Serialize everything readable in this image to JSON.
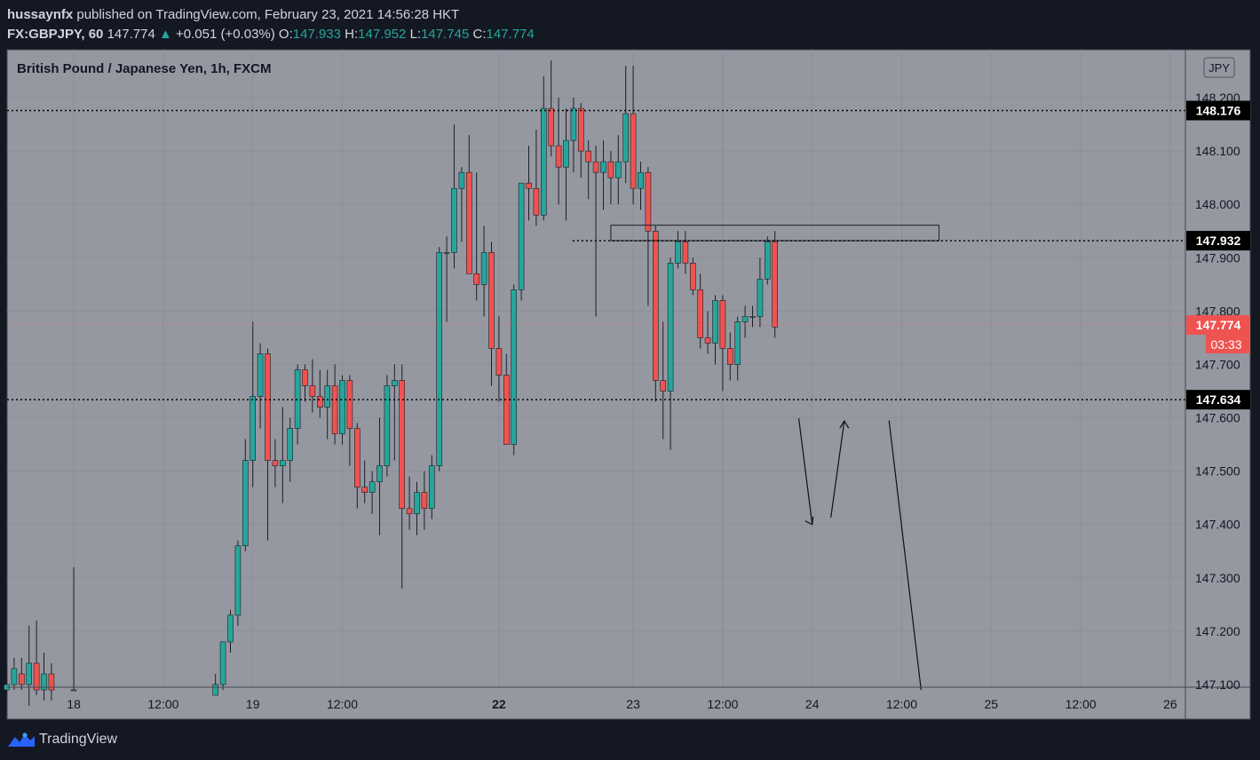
{
  "header": {
    "publisher": "hussaynfx",
    "published_text": "published on TradingView.com, February 23, 2021 14:56:28 HKT",
    "symbol_interval": "FX:GBPJPY, 60",
    "last_price": "147.774",
    "change": "+0.051 (+0.03%)",
    "o_label": "O:",
    "o_value": "147.933",
    "h_label": "H:",
    "h_value": "147.952",
    "l_label": "L:",
    "l_value": "147.745",
    "c_label": "C:",
    "c_value": "147.774"
  },
  "chart_data": {
    "type": "candlestick",
    "title": "British Pound / Japanese Yen, 1h, FXCM",
    "currency_badge": "JPY",
    "y_ticks": [
      "148.200",
      "148.100",
      "148.000",
      "147.900",
      "147.800",
      "147.700",
      "147.600",
      "147.500",
      "147.400",
      "147.300",
      "147.200",
      "147.100"
    ],
    "y_tick_values": [
      148.2,
      148.1,
      148.0,
      147.9,
      147.8,
      147.7,
      147.6,
      147.5,
      147.4,
      147.3,
      147.2,
      147.1
    ],
    "ylim": [
      147.095,
      148.29
    ],
    "x_ticks": [
      {
        "label": "18",
        "bar": 9,
        "bold": false
      },
      {
        "label": "12:00",
        "bar": 21,
        "bold": false
      },
      {
        "label": "19",
        "bar": 33,
        "bold": false
      },
      {
        "label": "12:00",
        "bar": 45,
        "bold": false
      },
      {
        "label": "22",
        "bar": 66,
        "bold": true
      },
      {
        "label": "23",
        "bar": 84,
        "bold": false
      },
      {
        "label": "12:00",
        "bar": 96,
        "bold": false
      },
      {
        "label": "24",
        "bar": 108,
        "bold": false
      },
      {
        "label": "12:00",
        "bar": 120,
        "bold": false
      },
      {
        "label": "25",
        "bar": 132,
        "bold": false
      },
      {
        "label": "12:00",
        "bar": 144,
        "bold": false
      },
      {
        "label": "26",
        "bar": 156,
        "bold": false
      }
    ],
    "colors": {
      "up": "#26a69a",
      "down": "#ef5350",
      "background": "#9598a1",
      "price_tag": "#ef5350"
    },
    "horizontal_levels": [
      {
        "label": "148.176",
        "value": 148.176
      },
      {
        "label": "147.932",
        "value": 147.932
      },
      {
        "label": "147.634",
        "value": 147.634
      }
    ],
    "current_price": {
      "label": "147.774",
      "value": 147.774,
      "countdown": "03:33"
    },
    "candles": [
      {
        "i": 0,
        "o": 147.09,
        "h": 147.14,
        "l": 147.08,
        "c": 147.1
      },
      {
        "i": 1,
        "o": 147.1,
        "h": 147.15,
        "l": 147.09,
        "c": 147.13
      },
      {
        "i": 2,
        "o": 147.12,
        "h": 147.15,
        "l": 147.09,
        "c": 147.1
      },
      {
        "i": 3,
        "o": 147.1,
        "h": 147.21,
        "l": 147.06,
        "c": 147.14
      },
      {
        "i": 4,
        "o": 147.14,
        "h": 147.22,
        "l": 147.08,
        "c": 147.09
      },
      {
        "i": 5,
        "o": 147.09,
        "h": 147.16,
        "l": 147.07,
        "c": 147.12
      },
      {
        "i": 6,
        "o": 147.12,
        "h": 147.14,
        "l": 147.07,
        "c": 147.09
      },
      {
        "i": 9,
        "o": 147.09,
        "h": 147.32,
        "l": 147.09,
        "c": 147.09
      },
      {
        "i": 28,
        "o": 147.08,
        "h": 147.12,
        "l": 147.08,
        "c": 147.1
      },
      {
        "i": 29,
        "o": 147.1,
        "h": 147.18,
        "l": 147.09,
        "c": 147.18
      },
      {
        "i": 30,
        "o": 147.18,
        "h": 147.24,
        "l": 147.16,
        "c": 147.23
      },
      {
        "i": 31,
        "o": 147.23,
        "h": 147.37,
        "l": 147.21,
        "c": 147.36
      },
      {
        "i": 32,
        "o": 147.36,
        "h": 147.56,
        "l": 147.35,
        "c": 147.52
      },
      {
        "i": 33,
        "o": 147.52,
        "h": 147.78,
        "l": 147.47,
        "c": 147.64
      },
      {
        "i": 34,
        "o": 147.64,
        "h": 147.74,
        "l": 147.58,
        "c": 147.72
      },
      {
        "i": 35,
        "o": 147.72,
        "h": 147.73,
        "l": 147.37,
        "c": 147.52
      },
      {
        "i": 36,
        "o": 147.52,
        "h": 147.56,
        "l": 147.47,
        "c": 147.51
      },
      {
        "i": 37,
        "o": 147.51,
        "h": 147.62,
        "l": 147.44,
        "c": 147.52
      },
      {
        "i": 38,
        "o": 147.52,
        "h": 147.6,
        "l": 147.48,
        "c": 147.58
      },
      {
        "i": 39,
        "o": 147.58,
        "h": 147.7,
        "l": 147.55,
        "c": 147.69
      },
      {
        "i": 40,
        "o": 147.69,
        "h": 147.7,
        "l": 147.63,
        "c": 147.66
      },
      {
        "i": 41,
        "o": 147.66,
        "h": 147.71,
        "l": 147.61,
        "c": 147.64
      },
      {
        "i": 42,
        "o": 147.64,
        "h": 147.69,
        "l": 147.6,
        "c": 147.62
      },
      {
        "i": 43,
        "o": 147.62,
        "h": 147.69,
        "l": 147.56,
        "c": 147.66
      },
      {
        "i": 44,
        "o": 147.66,
        "h": 147.7,
        "l": 147.55,
        "c": 147.57
      },
      {
        "i": 45,
        "o": 147.57,
        "h": 147.68,
        "l": 147.55,
        "c": 147.67
      },
      {
        "i": 46,
        "o": 147.67,
        "h": 147.68,
        "l": 147.51,
        "c": 147.58
      },
      {
        "i": 47,
        "o": 147.58,
        "h": 147.59,
        "l": 147.43,
        "c": 147.47
      },
      {
        "i": 48,
        "o": 147.47,
        "h": 147.52,
        "l": 147.44,
        "c": 147.46
      },
      {
        "i": 49,
        "o": 147.46,
        "h": 147.5,
        "l": 147.42,
        "c": 147.48
      },
      {
        "i": 50,
        "o": 147.48,
        "h": 147.6,
        "l": 147.38,
        "c": 147.51
      },
      {
        "i": 51,
        "o": 147.51,
        "h": 147.68,
        "l": 147.49,
        "c": 147.66
      },
      {
        "i": 52,
        "o": 147.66,
        "h": 147.7,
        "l": 147.52,
        "c": 147.67
      },
      {
        "i": 53,
        "o": 147.67,
        "h": 147.7,
        "l": 147.28,
        "c": 147.43
      },
      {
        "i": 54,
        "o": 147.43,
        "h": 147.49,
        "l": 147.39,
        "c": 147.42
      },
      {
        "i": 55,
        "o": 147.42,
        "h": 147.48,
        "l": 147.38,
        "c": 147.46
      },
      {
        "i": 56,
        "o": 147.46,
        "h": 147.5,
        "l": 147.39,
        "c": 147.43
      },
      {
        "i": 57,
        "o": 147.43,
        "h": 147.53,
        "l": 147.41,
        "c": 147.51
      },
      {
        "i": 58,
        "o": 147.51,
        "h": 147.92,
        "l": 147.5,
        "c": 147.91
      },
      {
        "i": 59,
        "o": 147.91,
        "h": 147.94,
        "l": 147.78,
        "c": 147.91
      },
      {
        "i": 60,
        "o": 147.91,
        "h": 148.15,
        "l": 147.88,
        "c": 148.03
      },
      {
        "i": 61,
        "o": 148.03,
        "h": 148.07,
        "l": 147.93,
        "c": 148.06
      },
      {
        "i": 62,
        "o": 148.06,
        "h": 148.13,
        "l": 147.87,
        "c": 147.87
      },
      {
        "i": 63,
        "o": 147.87,
        "h": 148.06,
        "l": 147.82,
        "c": 147.85
      },
      {
        "i": 64,
        "o": 147.85,
        "h": 147.96,
        "l": 147.79,
        "c": 147.91
      },
      {
        "i": 65,
        "o": 147.91,
        "h": 147.93,
        "l": 147.66,
        "c": 147.73
      },
      {
        "i": 66,
        "o": 147.73,
        "h": 147.79,
        "l": 147.63,
        "c": 147.68
      },
      {
        "i": 67,
        "o": 147.68,
        "h": 147.72,
        "l": 147.55,
        "c": 147.55
      },
      {
        "i": 68,
        "o": 147.55,
        "h": 147.85,
        "l": 147.53,
        "c": 147.84
      },
      {
        "i": 69,
        "o": 147.84,
        "h": 148.04,
        "l": 147.82,
        "c": 148.04
      },
      {
        "i": 70,
        "o": 148.04,
        "h": 148.11,
        "l": 147.97,
        "c": 148.03
      },
      {
        "i": 71,
        "o": 148.03,
        "h": 148.14,
        "l": 147.96,
        "c": 147.98
      },
      {
        "i": 72,
        "o": 147.98,
        "h": 148.24,
        "l": 147.97,
        "c": 148.18
      },
      {
        "i": 73,
        "o": 148.18,
        "h": 148.27,
        "l": 148.09,
        "c": 148.11
      },
      {
        "i": 74,
        "o": 148.11,
        "h": 148.2,
        "l": 148.0,
        "c": 148.07
      },
      {
        "i": 75,
        "o": 148.07,
        "h": 148.18,
        "l": 147.97,
        "c": 148.12
      },
      {
        "i": 76,
        "o": 148.12,
        "h": 148.2,
        "l": 148.06,
        "c": 148.18
      },
      {
        "i": 77,
        "o": 148.18,
        "h": 148.19,
        "l": 148.05,
        "c": 148.1
      },
      {
        "i": 78,
        "o": 148.1,
        "h": 148.12,
        "l": 148.01,
        "c": 148.08
      },
      {
        "i": 79,
        "o": 148.08,
        "h": 148.11,
        "l": 147.79,
        "c": 148.06
      },
      {
        "i": 80,
        "o": 148.06,
        "h": 148.12,
        "l": 147.99,
        "c": 148.08
      },
      {
        "i": 81,
        "o": 148.08,
        "h": 148.1,
        "l": 148.0,
        "c": 148.05
      },
      {
        "i": 82,
        "o": 148.05,
        "h": 148.13,
        "l": 148.0,
        "c": 148.08
      },
      {
        "i": 83,
        "o": 148.08,
        "h": 148.26,
        "l": 148.04,
        "c": 148.17
      },
      {
        "i": 84,
        "o": 148.17,
        "h": 148.26,
        "l": 148.0,
        "c": 148.03
      },
      {
        "i": 85,
        "o": 148.03,
        "h": 148.08,
        "l": 147.99,
        "c": 148.06
      },
      {
        "i": 86,
        "o": 148.06,
        "h": 148.07,
        "l": 147.81,
        "c": 147.95
      },
      {
        "i": 87,
        "o": 147.95,
        "h": 147.96,
        "l": 147.63,
        "c": 147.67
      },
      {
        "i": 88,
        "o": 147.67,
        "h": 147.78,
        "l": 147.56,
        "c": 147.65
      },
      {
        "i": 89,
        "o": 147.65,
        "h": 147.9,
        "l": 147.54,
        "c": 147.89
      },
      {
        "i": 90,
        "o": 147.89,
        "h": 147.95,
        "l": 147.88,
        "c": 147.93
      },
      {
        "i": 91,
        "o": 147.93,
        "h": 147.95,
        "l": 147.87,
        "c": 147.89
      },
      {
        "i": 92,
        "o": 147.89,
        "h": 147.9,
        "l": 147.83,
        "c": 147.84
      },
      {
        "i": 93,
        "o": 147.84,
        "h": 147.87,
        "l": 147.73,
        "c": 147.75
      },
      {
        "i": 94,
        "o": 147.75,
        "h": 147.8,
        "l": 147.72,
        "c": 147.74
      },
      {
        "i": 95,
        "o": 147.74,
        "h": 147.83,
        "l": 147.7,
        "c": 147.82
      },
      {
        "i": 96,
        "o": 147.82,
        "h": 147.83,
        "l": 147.65,
        "c": 147.73
      },
      {
        "i": 97,
        "o": 147.73,
        "h": 147.76,
        "l": 147.67,
        "c": 147.7
      },
      {
        "i": 98,
        "o": 147.7,
        "h": 147.79,
        "l": 147.67,
        "c": 147.78
      },
      {
        "i": 99,
        "o": 147.78,
        "h": 147.81,
        "l": 147.75,
        "c": 147.79
      },
      {
        "i": 100,
        "o": 147.79,
        "h": 147.81,
        "l": 147.77,
        "c": 147.79
      },
      {
        "i": 101,
        "o": 147.79,
        "h": 147.9,
        "l": 147.77,
        "c": 147.86
      },
      {
        "i": 102,
        "o": 147.86,
        "h": 147.94,
        "l": 147.85,
        "c": 147.93
      },
      {
        "i": 103,
        "o": 147.93,
        "h": 147.95,
        "l": 147.75,
        "c": 147.77
      }
    ],
    "drawings": {
      "zone": {
        "bar_start": 81,
        "bar_end": 125,
        "top": 147.961,
        "bottom": 147.932
      },
      "lines": [
        {
          "from": [
            106.2,
            147.599
          ],
          "to": [
            108.0,
            147.4
          ]
        },
        {
          "from": [
            110.5,
            147.413
          ],
          "to": [
            112.3,
            147.594
          ]
        },
        {
          "from": [
            118.3,
            147.595
          ],
          "to": [
            122.6,
            147.09
          ]
        }
      ],
      "arrowheads": [
        {
          "at": [
            108.0,
            147.4
          ],
          "dir": "down"
        },
        {
          "at": [
            112.3,
            147.594
          ],
          "dir": "up"
        }
      ]
    }
  },
  "footer": {
    "brand": "TradingView"
  }
}
